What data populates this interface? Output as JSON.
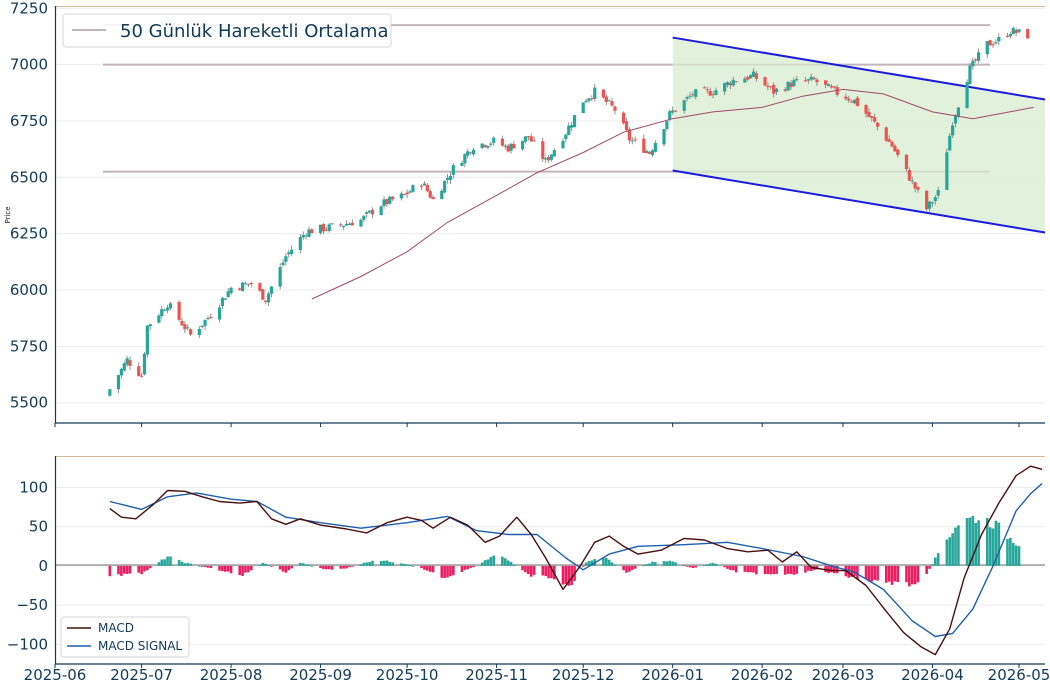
{
  "chart_data": [
    {
      "type": "candlestick",
      "panel": "price",
      "ylabel": "Price",
      "ylim": [
        5410,
        7260
      ],
      "yticks": [
        5500,
        5750,
        6000,
        6250,
        6500,
        6750,
        7000,
        7250
      ],
      "xlim": [
        "2025-06-01",
        "2026-05-10"
      ],
      "xticks": [
        "2025-06",
        "2025-07",
        "2025-08",
        "2025-09",
        "2025-10",
        "2025-11",
        "2025-12",
        "2026-01",
        "2026-02",
        "2026-03",
        "2026-04",
        "2026-05"
      ],
      "legend": {
        "label": "50 Günlük Hareketli Ortalama",
        "position": "top-left"
      },
      "grid": true,
      "colors": {
        "up": "#26a69a",
        "down": "#ef5350",
        "ma": "#a14a6a",
        "channel": "#1a1ae0",
        "channel_fill": "#d8ecd0",
        "hlines": "#c2b5b9",
        "spine": "#123a55"
      },
      "closes_anchor": [
        [
          "2025-06-20",
          5560
        ],
        [
          "2025-06-26",
          5690
        ],
        [
          "2025-07-01",
          5620
        ],
        [
          "2025-07-03",
          5840
        ],
        [
          "2025-07-10",
          5940
        ],
        [
          "2025-07-18",
          5800
        ],
        [
          "2025-07-25",
          5890
        ],
        [
          "2025-08-01",
          6010
        ],
        [
          "2025-08-08",
          6030
        ],
        [
          "2025-08-13",
          5960
        ],
        [
          "2025-08-20",
          6150
        ],
        [
          "2025-08-27",
          6260
        ],
        [
          "2025-09-05",
          6280
        ],
        [
          "2025-09-15",
          6310
        ],
        [
          "2025-09-22",
          6380
        ],
        [
          "2025-09-30",
          6420
        ],
        [
          "2025-10-06",
          6480
        ],
        [
          "2025-10-10",
          6400
        ],
        [
          "2025-10-17",
          6540
        ],
        [
          "2025-10-24",
          6640
        ],
        [
          "2025-10-31",
          6660
        ],
        [
          "2025-11-05",
          6630
        ],
        [
          "2025-11-12",
          6680
        ],
        [
          "2025-11-18",
          6570
        ],
        [
          "2025-11-25",
          6700
        ],
        [
          "2025-12-01",
          6840
        ],
        [
          "2025-12-05",
          6880
        ],
        [
          "2025-12-12",
          6800
        ],
        [
          "2025-12-17",
          6670
        ],
        [
          "2025-12-24",
          6610
        ],
        [
          "2025-12-31",
          6780
        ],
        [
          "2026-01-08",
          6870
        ],
        [
          "2026-01-15",
          6880
        ],
        [
          "2026-01-22",
          6930
        ],
        [
          "2026-01-29",
          6950
        ],
        [
          "2026-02-05",
          6880
        ],
        [
          "2026-02-12",
          6920
        ],
        [
          "2026-02-19",
          6930
        ],
        [
          "2026-02-26",
          6880
        ],
        [
          "2026-03-05",
          6840
        ],
        [
          "2026-03-12",
          6740
        ],
        [
          "2026-03-18",
          6640
        ],
        [
          "2026-03-24",
          6500
        ],
        [
          "2026-03-30",
          6360
        ],
        [
          "2026-04-03",
          6430
        ],
        [
          "2026-04-08",
          6750
        ],
        [
          "2026-04-14",
          6980
        ],
        [
          "2026-04-20",
          7090
        ],
        [
          "2026-04-24",
          7110
        ],
        [
          "2026-04-28",
          7150
        ],
        [
          "2026-05-01",
          7140
        ],
        [
          "2026-05-04",
          7130
        ]
      ],
      "moving_average_50": [
        [
          "2025-08-29",
          5960
        ],
        [
          "2025-09-15",
          6060
        ],
        [
          "2025-10-01",
          6170
        ],
        [
          "2025-10-15",
          6300
        ],
        [
          "2025-11-01",
          6420
        ],
        [
          "2025-11-15",
          6520
        ],
        [
          "2025-12-01",
          6610
        ],
        [
          "2025-12-15",
          6700
        ],
        [
          "2026-01-01",
          6760
        ],
        [
          "2026-01-15",
          6790
        ],
        [
          "2026-02-01",
          6810
        ],
        [
          "2026-02-15",
          6860
        ],
        [
          "2026-03-01",
          6890
        ],
        [
          "2026-03-15",
          6870
        ],
        [
          "2026-04-01",
          6790
        ],
        [
          "2026-04-15",
          6760
        ],
        [
          "2026-05-06",
          6810
        ]
      ],
      "horizontal_lines": [
        6525,
        7000,
        7175
      ],
      "channel": {
        "upper": [
          [
            "2026-01-01",
            7120
          ],
          [
            "2026-05-10",
            6845
          ]
        ],
        "lower": [
          [
            "2026-01-01",
            6530
          ],
          [
            "2026-05-10",
            6255
          ]
        ]
      }
    },
    {
      "type": "line",
      "panel": "macd",
      "ylim": [
        -125,
        140
      ],
      "yticks": [
        -100,
        -50,
        0,
        50,
        100
      ],
      "xticks": [
        "2025-06",
        "2025-07",
        "2025-08",
        "2025-09",
        "2025-10",
        "2025-11",
        "2025-12",
        "2026-01",
        "2026-02",
        "2026-03",
        "2026-04",
        "2026-05"
      ],
      "legend_position": "lower-left",
      "grid": true,
      "series": [
        {
          "name": "MACD",
          "color": "#4a0f0f",
          "points": [
            [
              "2025-06-20",
              73
            ],
            [
              "2025-06-24",
              62
            ],
            [
              "2025-06-29",
              60
            ],
            [
              "2025-07-05",
              78
            ],
            [
              "2025-07-10",
              96
            ],
            [
              "2025-07-16",
              95
            ],
            [
              "2025-07-22",
              88
            ],
            [
              "2025-07-28",
              82
            ],
            [
              "2025-08-04",
              80
            ],
            [
              "2025-08-10",
              82
            ],
            [
              "2025-08-15",
              60
            ],
            [
              "2025-08-20",
              53
            ],
            [
              "2025-08-25",
              60
            ],
            [
              "2025-09-01",
              52
            ],
            [
              "2025-09-10",
              47
            ],
            [
              "2025-09-17",
              42
            ],
            [
              "2025-09-24",
              55
            ],
            [
              "2025-10-01",
              62
            ],
            [
              "2025-10-06",
              58
            ],
            [
              "2025-10-10",
              48
            ],
            [
              "2025-10-16",
              62
            ],
            [
              "2025-10-22",
              52
            ],
            [
              "2025-10-28",
              30
            ],
            [
              "2025-11-02",
              38
            ],
            [
              "2025-11-08",
              62
            ],
            [
              "2025-11-13",
              40
            ],
            [
              "2025-11-18",
              10
            ],
            [
              "2025-11-24",
              -30
            ],
            [
              "2025-11-30",
              0
            ],
            [
              "2025-12-05",
              30
            ],
            [
              "2025-12-10",
              38
            ],
            [
              "2025-12-15",
              25
            ],
            [
              "2025-12-20",
              15
            ],
            [
              "2025-12-28",
              20
            ],
            [
              "2026-01-05",
              35
            ],
            [
              "2026-01-12",
              33
            ],
            [
              "2026-01-20",
              22
            ],
            [
              "2026-01-27",
              18
            ],
            [
              "2026-02-03",
              20
            ],
            [
              "2026-02-08",
              5
            ],
            [
              "2026-02-13",
              18
            ],
            [
              "2026-02-18",
              -2
            ],
            [
              "2026-02-25",
              -6
            ],
            [
              "2026-03-02",
              -6
            ],
            [
              "2026-03-09",
              -25
            ],
            [
              "2026-03-16",
              -58
            ],
            [
              "2026-03-22",
              -85
            ],
            [
              "2026-03-28",
              -103
            ],
            [
              "2026-04-02",
              -113
            ],
            [
              "2026-04-07",
              -80
            ],
            [
              "2026-04-12",
              -15
            ],
            [
              "2026-04-18",
              40
            ],
            [
              "2026-04-24",
              80
            ],
            [
              "2026-04-30",
              115
            ],
            [
              "2026-05-05",
              127
            ],
            [
              "2026-05-09",
              123
            ]
          ]
        },
        {
          "name": "MACD SIGNAL",
          "color": "#1f5fb0",
          "points": [
            [
              "2025-06-20",
              82
            ],
            [
              "2025-07-01",
              72
            ],
            [
              "2025-07-10",
              88
            ],
            [
              "2025-07-20",
              93
            ],
            [
              "2025-08-01",
              85
            ],
            [
              "2025-08-10",
              82
            ],
            [
              "2025-08-20",
              62
            ],
            [
              "2025-09-01",
              55
            ],
            [
              "2025-09-15",
              48
            ],
            [
              "2025-10-01",
              55
            ],
            [
              "2025-10-15",
              63
            ],
            [
              "2025-10-25",
              45
            ],
            [
              "2025-11-05",
              40
            ],
            [
              "2025-11-15",
              40
            ],
            [
              "2025-11-25",
              10
            ],
            [
              "2025-12-01",
              -5
            ],
            [
              "2025-12-10",
              15
            ],
            [
              "2025-12-20",
              25
            ],
            [
              "2026-01-05",
              27
            ],
            [
              "2026-01-20",
              30
            ],
            [
              "2026-02-01",
              22
            ],
            [
              "2026-02-15",
              12
            ],
            [
              "2026-02-25",
              0
            ],
            [
              "2026-03-05",
              -8
            ],
            [
              "2026-03-15",
              -30
            ],
            [
              "2026-03-25",
              -70
            ],
            [
              "2026-04-02",
              -90
            ],
            [
              "2026-04-08",
              -86
            ],
            [
              "2026-04-15",
              -55
            ],
            [
              "2026-04-22",
              0
            ],
            [
              "2026-04-30",
              70
            ],
            [
              "2026-05-05",
              92
            ],
            [
              "2026-05-09",
              105
            ]
          ]
        }
      ],
      "histogram": {
        "positive_color": "#26a69a",
        "negative_color": "#e91e63",
        "bars": [
          [
            "2025-06-20",
            -12
          ],
          [
            "2025-07-01",
            -10
          ],
          [
            "2025-07-10",
            12
          ],
          [
            "2025-07-16",
            4
          ],
          [
            "2025-07-25",
            -3
          ],
          [
            "2025-08-05",
            -12
          ],
          [
            "2025-08-12",
            4
          ],
          [
            "2025-08-20",
            -8
          ],
          [
            "2025-08-25",
            4
          ],
          [
            "2025-09-03",
            -5
          ],
          [
            "2025-09-10",
            -3
          ],
          [
            "2025-09-20",
            8
          ],
          [
            "2025-09-30",
            3
          ],
          [
            "2025-10-06",
            -3
          ],
          [
            "2025-10-14",
            -15
          ],
          [
            "2025-10-25",
            0
          ],
          [
            "2025-11-01",
            15
          ],
          [
            "2025-11-06",
            5
          ],
          [
            "2025-11-12",
            -12
          ],
          [
            "2025-11-20",
            -15
          ],
          [
            "2025-11-26",
            -28
          ],
          [
            "2025-12-02",
            5
          ],
          [
            "2025-12-08",
            12
          ],
          [
            "2025-12-16",
            -8
          ],
          [
            "2025-12-25",
            5
          ],
          [
            "2026-01-01",
            6
          ],
          [
            "2026-01-08",
            -3
          ],
          [
            "2026-01-15",
            4
          ],
          [
            "2026-01-23",
            -8
          ],
          [
            "2026-02-02",
            -10
          ],
          [
            "2026-02-12",
            -10
          ],
          [
            "2026-02-20",
            -5
          ],
          [
            "2026-02-26",
            -10
          ],
          [
            "2026-03-05",
            -15
          ],
          [
            "2026-03-12",
            -20
          ],
          [
            "2026-03-20",
            -22
          ],
          [
            "2026-03-28",
            -25
          ],
          [
            "2026-04-05",
            30
          ],
          [
            "2026-04-10",
            55
          ],
          [
            "2026-04-16",
            62
          ],
          [
            "2026-04-22",
            55
          ],
          [
            "2026-04-28",
            35
          ],
          [
            "2026-05-02",
            25
          ]
        ]
      }
    }
  ]
}
